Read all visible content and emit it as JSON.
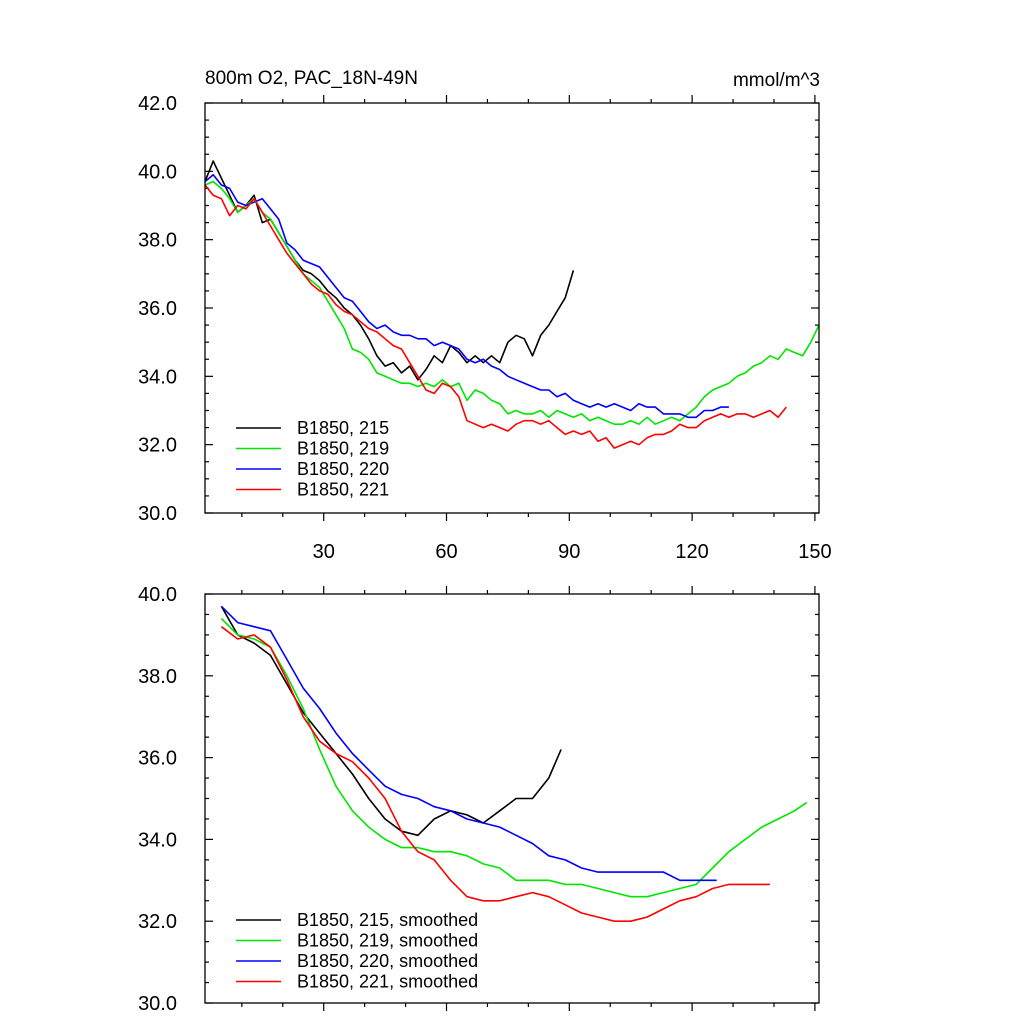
{
  "chart_data": [
    {
      "type": "line",
      "title": "800m O2, PAC_18N-49N",
      "units": "mmol/m^3",
      "ylim": [
        30.0,
        42.0
      ],
      "xlim": [
        1,
        151
      ],
      "y_ticks": [
        "30.0",
        "32.0",
        "34.0",
        "36.0",
        "38.0",
        "40.0",
        "42.0"
      ],
      "x_ticks": [
        "30",
        "60",
        "90",
        "120",
        "150"
      ],
      "legend_position": "bottom-left",
      "series": [
        {
          "name": "B1850, 215",
          "color": "#000000",
          "x": [
            1,
            3,
            5,
            7,
            9,
            11,
            13,
            15,
            17,
            19,
            21,
            23,
            25,
            27,
            29,
            31,
            33,
            35,
            37,
            39,
            41,
            43,
            45,
            47,
            49,
            51,
            53,
            55,
            57,
            59,
            61,
            63,
            65,
            67,
            69,
            71,
            73,
            75,
            77,
            79,
            81,
            83,
            85,
            87,
            89,
            91
          ],
          "values": [
            39.7,
            40.3,
            39.8,
            39.3,
            38.8,
            39.0,
            39.3,
            38.5,
            38.6,
            38.2,
            37.8,
            37.4,
            37.1,
            37.0,
            36.8,
            36.5,
            36.3,
            36.0,
            35.8,
            35.5,
            35.1,
            34.6,
            34.3,
            34.4,
            34.1,
            34.3,
            33.9,
            34.2,
            34.6,
            34.4,
            34.9,
            34.7,
            34.4,
            34.6,
            34.4,
            34.6,
            34.4,
            35.0,
            35.2,
            35.1,
            34.6,
            35.2,
            35.5,
            35.9,
            36.3,
            37.1
          ]
        },
        {
          "name": "B1850, 219",
          "color": "#00e600",
          "x": [
            1,
            3,
            5,
            7,
            9,
            11,
            13,
            15,
            17,
            19,
            21,
            23,
            25,
            27,
            29,
            31,
            33,
            35,
            37,
            39,
            41,
            43,
            45,
            47,
            49,
            51,
            53,
            55,
            57,
            59,
            61,
            63,
            65,
            67,
            69,
            71,
            73,
            75,
            77,
            79,
            81,
            83,
            85,
            87,
            89,
            91,
            93,
            95,
            97,
            99,
            101,
            103,
            105,
            107,
            109,
            111,
            113,
            115,
            117,
            119,
            121,
            123,
            125,
            127,
            129,
            131,
            133,
            135,
            137,
            139,
            141,
            143,
            145,
            147,
            149,
            151
          ],
          "values": [
            39.6,
            39.7,
            39.5,
            39.2,
            38.8,
            39.0,
            39.2,
            38.8,
            38.6,
            38.2,
            37.8,
            37.4,
            37.0,
            36.8,
            36.6,
            36.2,
            35.8,
            35.4,
            34.8,
            34.7,
            34.5,
            34.1,
            34.0,
            33.9,
            33.8,
            33.8,
            33.7,
            33.8,
            33.7,
            33.9,
            33.7,
            33.8,
            33.3,
            33.6,
            33.5,
            33.3,
            33.2,
            32.9,
            33.0,
            32.9,
            32.9,
            33.0,
            32.8,
            33.0,
            32.9,
            32.8,
            32.9,
            32.7,
            32.8,
            32.7,
            32.6,
            32.6,
            32.7,
            32.6,
            32.8,
            32.6,
            32.7,
            32.8,
            32.7,
            32.9,
            33.1,
            33.4,
            33.6,
            33.7,
            33.8,
            34.0,
            34.1,
            34.3,
            34.4,
            34.6,
            34.5,
            34.8,
            34.7,
            34.6,
            35.0,
            35.5
          ]
        },
        {
          "name": "B1850, 220",
          "color": "#0000ff",
          "x": [
            1,
            3,
            5,
            7,
            9,
            11,
            13,
            15,
            17,
            19,
            21,
            23,
            25,
            27,
            29,
            31,
            33,
            35,
            37,
            39,
            41,
            43,
            45,
            47,
            49,
            51,
            53,
            55,
            57,
            59,
            61,
            63,
            65,
            67,
            69,
            71,
            73,
            75,
            77,
            79,
            81,
            83,
            85,
            87,
            89,
            91,
            93,
            95,
            97,
            99,
            101,
            103,
            105,
            107,
            109,
            111,
            113,
            115,
            117,
            119,
            121,
            123,
            125,
            127,
            129
          ],
          "values": [
            39.7,
            39.9,
            39.6,
            39.5,
            39.1,
            39.0,
            39.1,
            39.2,
            38.9,
            38.6,
            37.9,
            37.7,
            37.4,
            37.3,
            37.2,
            36.9,
            36.6,
            36.3,
            36.2,
            35.9,
            35.6,
            35.4,
            35.5,
            35.3,
            35.2,
            35.2,
            35.1,
            35.1,
            34.9,
            35.0,
            34.9,
            34.8,
            34.5,
            34.4,
            34.5,
            34.3,
            34.2,
            34.0,
            33.9,
            33.8,
            33.7,
            33.6,
            33.6,
            33.4,
            33.5,
            33.3,
            33.2,
            33.1,
            33.2,
            33.1,
            33.2,
            33.1,
            33.0,
            33.2,
            33.1,
            33.1,
            32.9,
            32.9,
            32.9,
            32.8,
            32.8,
            33.0,
            33.0,
            33.1,
            33.1
          ]
        },
        {
          "name": "B1850, 221",
          "color": "#ff0000",
          "x": [
            1,
            3,
            5,
            7,
            9,
            11,
            13,
            15,
            17,
            19,
            21,
            23,
            25,
            27,
            29,
            31,
            33,
            35,
            37,
            39,
            41,
            43,
            45,
            47,
            49,
            51,
            53,
            55,
            57,
            59,
            61,
            63,
            65,
            67,
            69,
            71,
            73,
            75,
            77,
            79,
            81,
            83,
            85,
            87,
            89,
            91,
            93,
            95,
            97,
            99,
            101,
            103,
            105,
            107,
            109,
            111,
            113,
            115,
            117,
            119,
            121,
            123,
            125,
            127,
            129,
            131,
            133,
            135,
            137,
            139,
            141,
            143
          ],
          "values": [
            39.6,
            39.3,
            39.2,
            38.7,
            39.0,
            38.9,
            39.2,
            38.8,
            38.4,
            38.0,
            37.6,
            37.3,
            37.0,
            36.7,
            36.5,
            36.4,
            36.1,
            35.9,
            35.8,
            35.6,
            35.4,
            35.3,
            35.1,
            34.9,
            34.8,
            34.4,
            34.0,
            33.6,
            33.5,
            33.8,
            33.7,
            33.4,
            32.7,
            32.6,
            32.5,
            32.6,
            32.5,
            32.4,
            32.6,
            32.7,
            32.7,
            32.6,
            32.7,
            32.5,
            32.3,
            32.4,
            32.3,
            32.4,
            32.1,
            32.2,
            31.9,
            32.0,
            32.1,
            32.0,
            32.2,
            32.3,
            32.3,
            32.4,
            32.6,
            32.5,
            32.5,
            32.7,
            32.8,
            32.9,
            32.8,
            32.9,
            32.9,
            32.8,
            32.9,
            33.0,
            32.8,
            33.1
          ]
        }
      ]
    },
    {
      "type": "line",
      "title": "",
      "ylim": [
        30.0,
        40.0
      ],
      "xlim": [
        1,
        151
      ],
      "y_ticks": [
        "30.0",
        "32.0",
        "34.0",
        "36.0",
        "38.0",
        "40.0"
      ],
      "x_ticks": [],
      "legend_position": "bottom-left",
      "series": [
        {
          "name": "B1850, 215, smoothed",
          "color": "#000000",
          "x": [
            5,
            9,
            13,
            17,
            21,
            25,
            29,
            33,
            37,
            41,
            45,
            49,
            53,
            57,
            61,
            65,
            69,
            73,
            77,
            81,
            85,
            88
          ],
          "values": [
            39.7,
            39.0,
            38.8,
            38.5,
            37.8,
            37.1,
            36.6,
            36.1,
            35.6,
            35.0,
            34.5,
            34.2,
            34.1,
            34.5,
            34.7,
            34.6,
            34.4,
            34.7,
            35.0,
            35.0,
            35.5,
            36.2
          ]
        },
        {
          "name": "B1850, 219, smoothed",
          "color": "#00e600",
          "x": [
            5,
            9,
            13,
            17,
            21,
            25,
            29,
            33,
            37,
            41,
            45,
            49,
            53,
            57,
            61,
            65,
            69,
            73,
            77,
            81,
            85,
            89,
            93,
            97,
            101,
            105,
            109,
            113,
            117,
            121,
            125,
            129,
            133,
            137,
            141,
            145,
            148
          ],
          "values": [
            39.4,
            39.0,
            38.9,
            38.7,
            38.0,
            37.2,
            36.2,
            35.3,
            34.7,
            34.3,
            34.0,
            33.8,
            33.8,
            33.7,
            33.7,
            33.6,
            33.4,
            33.3,
            33.0,
            33.0,
            33.0,
            32.9,
            32.9,
            32.8,
            32.7,
            32.6,
            32.6,
            32.7,
            32.8,
            32.9,
            33.3,
            33.7,
            34.0,
            34.3,
            34.5,
            34.7,
            34.9
          ]
        },
        {
          "name": "B1850, 220, smoothed",
          "color": "#0000ff",
          "x": [
            5,
            9,
            13,
            17,
            21,
            25,
            29,
            33,
            37,
            41,
            45,
            49,
            53,
            57,
            61,
            65,
            69,
            73,
            77,
            81,
            85,
            89,
            93,
            97,
            101,
            105,
            109,
            113,
            117,
            121,
            126
          ],
          "values": [
            39.7,
            39.3,
            39.2,
            39.1,
            38.4,
            37.7,
            37.2,
            36.6,
            36.1,
            35.7,
            35.3,
            35.1,
            35.0,
            34.8,
            34.7,
            34.5,
            34.4,
            34.3,
            34.1,
            33.9,
            33.6,
            33.5,
            33.3,
            33.2,
            33.2,
            33.2,
            33.2,
            33.2,
            33.0,
            33.0,
            33.0
          ]
        },
        {
          "name": "B1850, 221, smoothed",
          "color": "#ff0000",
          "x": [
            5,
            9,
            13,
            17,
            21,
            25,
            29,
            33,
            37,
            41,
            45,
            49,
            53,
            57,
            61,
            65,
            69,
            73,
            77,
            81,
            85,
            89,
            93,
            97,
            101,
            105,
            109,
            113,
            117,
            121,
            125,
            129,
            133,
            137,
            139
          ],
          "values": [
            39.2,
            38.9,
            39.0,
            38.7,
            37.9,
            37.0,
            36.4,
            36.1,
            35.9,
            35.5,
            35.0,
            34.2,
            33.7,
            33.5,
            33.0,
            32.6,
            32.5,
            32.5,
            32.6,
            32.7,
            32.6,
            32.4,
            32.2,
            32.1,
            32.0,
            32.0,
            32.1,
            32.3,
            32.5,
            32.6,
            32.8,
            32.9,
            32.9,
            32.9,
            32.9
          ]
        }
      ]
    }
  ]
}
